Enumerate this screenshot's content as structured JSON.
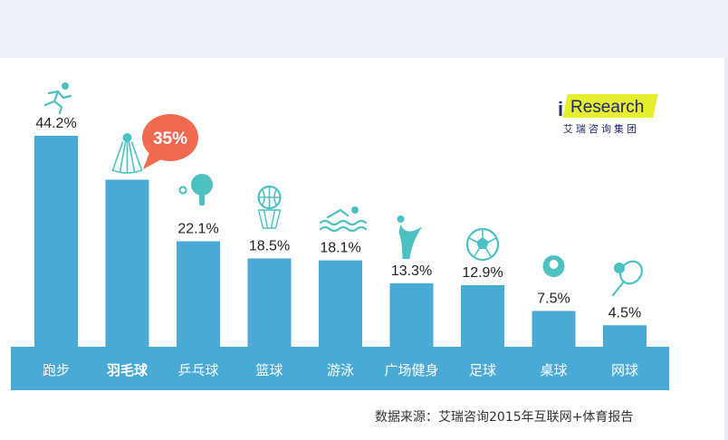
{
  "chart_data": {
    "type": "bar",
    "categories": [
      "跑步",
      "羽毛球",
      "乒乓球",
      "篮球",
      "游泳",
      "广场健身",
      "足球",
      "桌球",
      "网球"
    ],
    "values": [
      44.2,
      35,
      22.1,
      18.5,
      18.1,
      13.3,
      12.9,
      7.5,
      4.5
    ],
    "value_labels": [
      "44.2%",
      "",
      "22.1%",
      "18.5%",
      "18.1%",
      "13.3%",
      "12.9%",
      "7.5%",
      "4.5%"
    ],
    "highlight": {
      "category": "羽毛球",
      "label": "35%"
    },
    "icons": [
      "runner-icon",
      "shuttlecock-icon",
      "ping-pong-paddle-icon",
      "basketball-icon",
      "swimmer-icon",
      "dancer-icon",
      "soccer-ball-icon",
      "billiard-ball-icon",
      "tennis-icon"
    ],
    "colors": {
      "bar": "#4aaad6",
      "axis_band": "#4aaad6",
      "icon": "#4dc1c1",
      "bubble": "#f06a52"
    },
    "xlabel": "",
    "ylabel": "",
    "ylim": [
      0,
      44.2
    ]
  },
  "logo": {
    "brand": "Research",
    "brand_prefix": "i",
    "subtitle": "艾瑞咨询集团"
  },
  "source": "数据来源：艾瑞咨询2015年互联网+体育报告"
}
